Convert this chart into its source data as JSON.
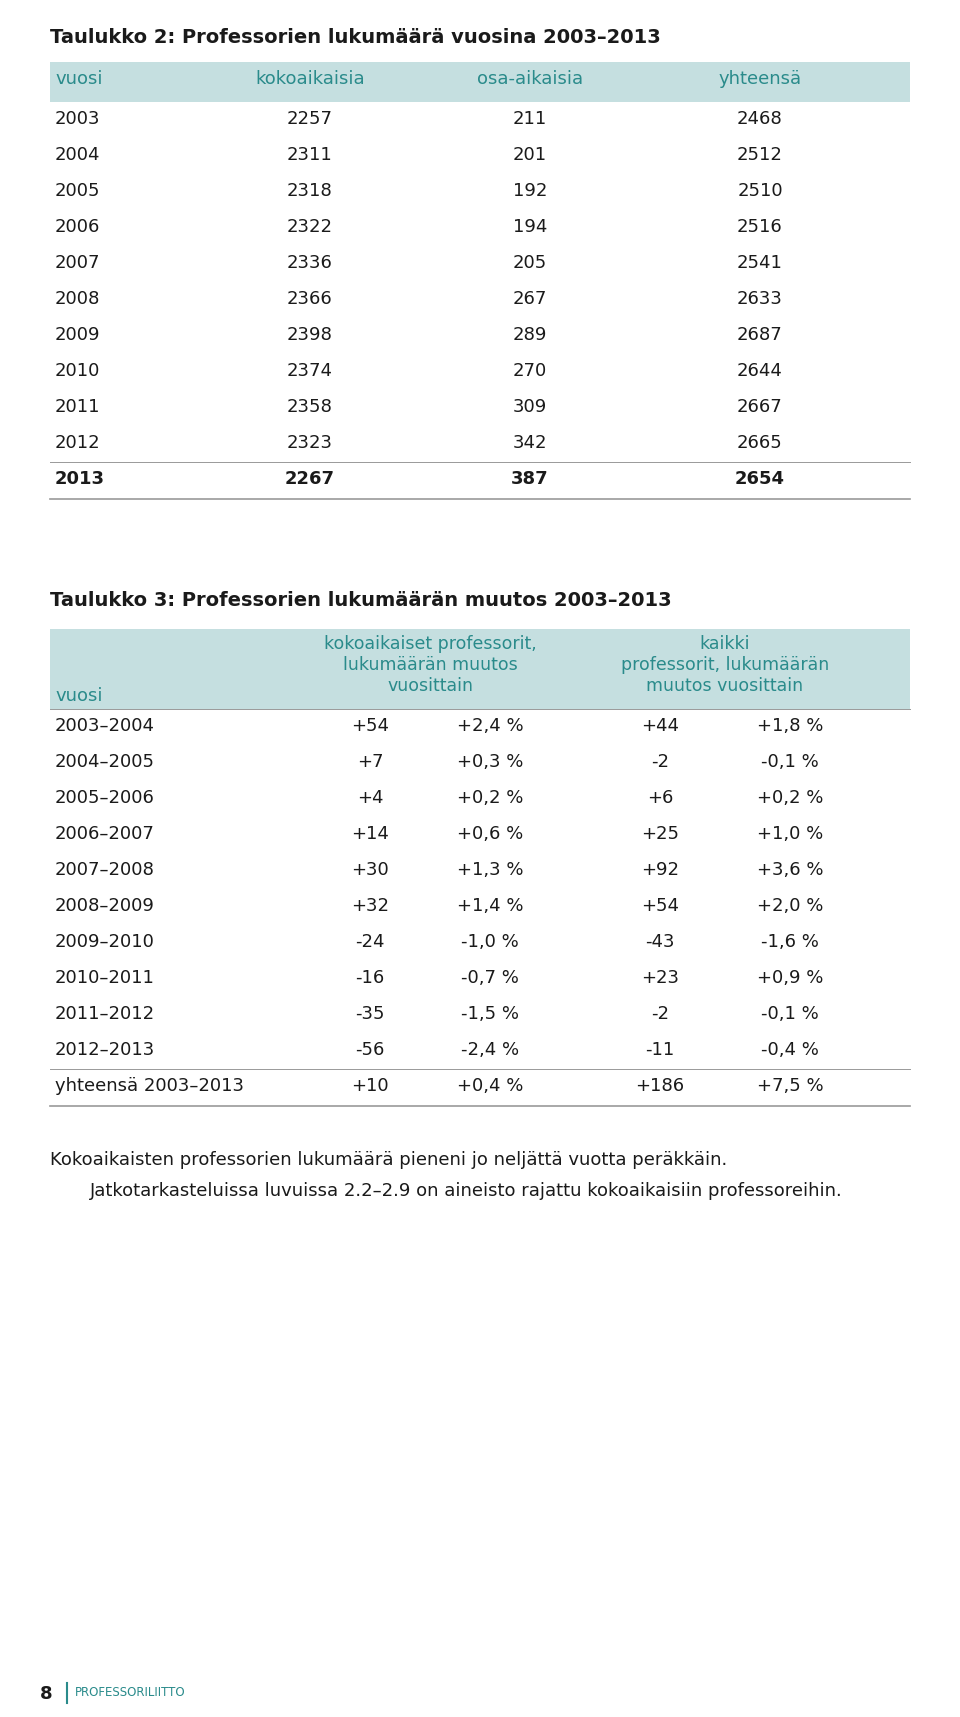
{
  "title1": "Taulukko 2: Professorien lukumäärä vuosina 2003–2013",
  "title2": "Taulukko 3: Professorien lukumäärän muutos 2003–2013",
  "table1_header": [
    "vuosi",
    "kokoaikaisia",
    "osa-aikaisia",
    "yhteensä"
  ],
  "table1_data": [
    [
      "2003",
      "2257",
      "211",
      "2468"
    ],
    [
      "2004",
      "2311",
      "201",
      "2512"
    ],
    [
      "2005",
      "2318",
      "192",
      "2510"
    ],
    [
      "2006",
      "2322",
      "194",
      "2516"
    ],
    [
      "2007",
      "2336",
      "205",
      "2541"
    ],
    [
      "2008",
      "2366",
      "267",
      "2633"
    ],
    [
      "2009",
      "2398",
      "289",
      "2687"
    ],
    [
      "2010",
      "2374",
      "270",
      "2644"
    ],
    [
      "2011",
      "2358",
      "309",
      "2667"
    ],
    [
      "2012",
      "2323",
      "342",
      "2665"
    ],
    [
      "2013",
      "2267",
      "387",
      "2654"
    ]
  ],
  "table2_data": [
    [
      "2003–2004",
      "+54",
      "+2,4 %",
      "+44",
      "+1,8 %"
    ],
    [
      "2004–2005",
      "+7",
      "+0,3 %",
      "-2",
      "-0,1 %"
    ],
    [
      "2005–2006",
      "+4",
      "+0,2 %",
      "+6",
      "+0,2 %"
    ],
    [
      "2006–2007",
      "+14",
      "+0,6 %",
      "+25",
      "+1,0 %"
    ],
    [
      "2007–2008",
      "+30",
      "+1,3 %",
      "+92",
      "+3,6 %"
    ],
    [
      "2008–2009",
      "+32",
      "+1,4 %",
      "+54",
      "+2,0 %"
    ],
    [
      "2009–2010",
      "-24",
      "-1,0 %",
      "-43",
      "-1,6 %"
    ],
    [
      "2010–2011",
      "-16",
      "-0,7 %",
      "+23",
      "+0,9 %"
    ],
    [
      "2011–2012",
      "-35",
      "-1,5 %",
      "-2",
      "-0,1 %"
    ],
    [
      "2012–2013",
      "-56",
      "-2,4 %",
      "-11",
      "-0,4 %"
    ],
    [
      "yhteensä 2003–2013",
      "+10",
      "+0,4 %",
      "+186",
      "+7,5 %"
    ]
  ],
  "footer_text1": "Kokoaikaisten professorien lukumäärä pieneni jo neljättä vuotta peräkkäin.",
  "footer_text2": "Jatkotarkasteluissa luvuissa 2.2–2.9 on aineisto rajattu kokoaikaisiin professoreihin.",
  "page_number": "8",
  "page_label": "PROFESSORILIITTO",
  "header_bg_color": "#c5dfe0",
  "teal_color": "#2a8b8b",
  "bg_color": "#ffffff",
  "text_color": "#1a1a1a",
  "line_color": "#999999"
}
